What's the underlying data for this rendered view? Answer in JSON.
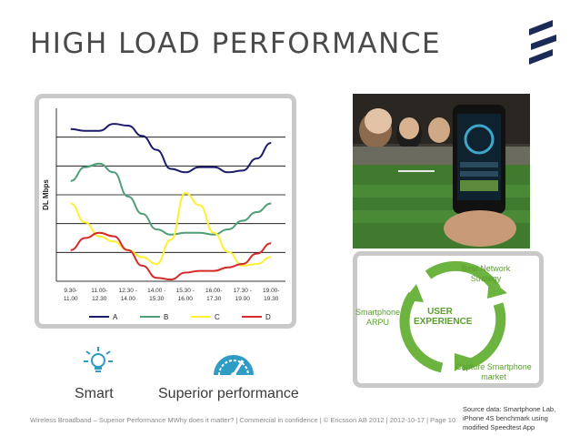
{
  "title": "HIGH LOAD PERFORMANCE",
  "colors": {
    "A": "#1c1c6b",
    "B": "#4f9e78",
    "C": "#ffee33",
    "D": "#d42a2a",
    "accent": "#5a9e2f",
    "icon": "#2e9cc4",
    "frame": "#c9c9c9"
  },
  "chart_data": {
    "type": "line",
    "ylabel": "DL Mbps",
    "xlabel": "",
    "categories": [
      "9.30-\n11.00",
      "11.00-\n12.30",
      "12.30 -\n14.00",
      "14.00 -\n15.30",
      "15.30 -\n16.00",
      "16.00-\n17.30",
      "17.30 -\n19.00",
      "19.00-\n19.30"
    ],
    "ylim": [
      0,
      100
    ],
    "grid": true,
    "legend": "bottom",
    "series": [
      {
        "name": "A",
        "color": "#1c1c6b",
        "values": [
          [
            0,
            88
          ],
          [
            0.5,
            87
          ],
          [
            1,
            87
          ],
          [
            1.5,
            91
          ],
          [
            2,
            90
          ],
          [
            2.5,
            84
          ],
          [
            3,
            76
          ],
          [
            3.5,
            65
          ],
          [
            4,
            63
          ],
          [
            4.5,
            66
          ],
          [
            5,
            66
          ],
          [
            5.5,
            63
          ],
          [
            6,
            64
          ],
          [
            6.5,
            71
          ],
          [
            7,
            80
          ]
        ]
      },
      {
        "name": "B",
        "color": "#4f9e78",
        "values": [
          [
            0,
            58
          ],
          [
            0.5,
            66
          ],
          [
            1,
            68
          ],
          [
            1.5,
            63
          ],
          [
            2,
            49
          ],
          [
            2.5,
            39
          ],
          [
            3,
            30
          ],
          [
            3.5,
            27
          ],
          [
            4,
            28
          ],
          [
            4.5,
            28
          ],
          [
            5,
            27
          ],
          [
            5.5,
            30
          ],
          [
            6,
            35
          ],
          [
            6.5,
            40
          ],
          [
            7,
            45
          ]
        ]
      },
      {
        "name": "C",
        "color": "#ffee33",
        "values": [
          [
            0,
            45
          ],
          [
            0.5,
            34
          ],
          [
            1,
            26
          ],
          [
            1.5,
            23
          ],
          [
            2,
            18
          ],
          [
            2.5,
            14
          ],
          [
            3,
            10
          ],
          [
            3.5,
            24
          ],
          [
            4,
            51
          ],
          [
            4.5,
            44
          ],
          [
            5,
            28
          ],
          [
            5.5,
            17
          ],
          [
            6,
            9
          ],
          [
            6.5,
            10
          ],
          [
            7,
            14
          ]
        ]
      },
      {
        "name": "D",
        "color": "#d42a2a",
        "values": [
          [
            0,
            18
          ],
          [
            0.5,
            25
          ],
          [
            1,
            28
          ],
          [
            1.5,
            26
          ],
          [
            2,
            18
          ],
          [
            2.5,
            9
          ],
          [
            3,
            2
          ],
          [
            3.5,
            1
          ],
          [
            4,
            5
          ],
          [
            4.5,
            6
          ],
          [
            5,
            6
          ],
          [
            5.5,
            8
          ],
          [
            6,
            10
          ],
          [
            6.5,
            16
          ],
          [
            7,
            22
          ]
        ]
      }
    ]
  },
  "cycle": {
    "top": "Best Network\nStrategy",
    "left": "Smartphone\nARPU",
    "center": "USER\nEXPERIENCE",
    "bottom": "Capture Smartphone\nmarket"
  },
  "icons": {
    "smart": "lightbulb-icon",
    "performance": "speedometer-icon"
  },
  "labels": {
    "smart": "Smart",
    "performance": "Superior performance"
  },
  "footer": "Wireless Broadband – Superior Performance MWhy does it matter?  |  Commercial in confidence  |  © Ericsson AB 2012  |  2012-10-17  |  Page 10",
  "source": "Source data: Smartphone Lab, iPhone 4S benchmark using modified Speedtest App"
}
